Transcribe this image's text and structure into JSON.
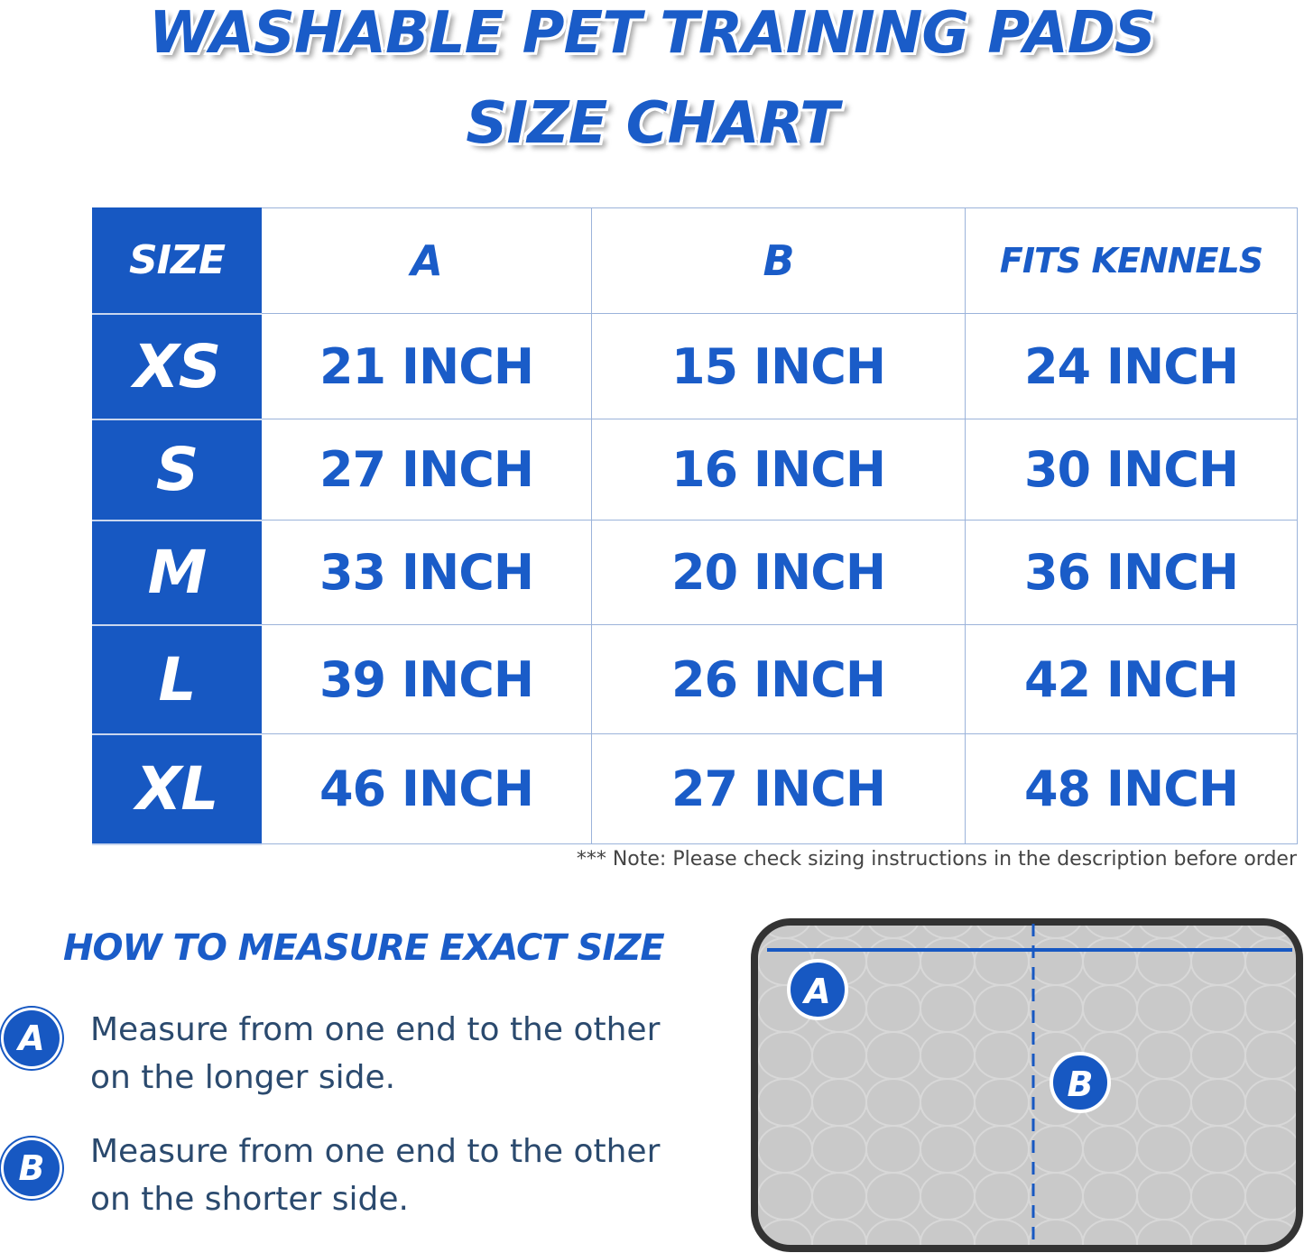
{
  "header": {
    "lines": [
      "WASHABLE PET TRAINING PADS",
      "SIZE CHART"
    ]
  },
  "table": {
    "columns": [
      "SIZE",
      "A",
      "B",
      "FITS KENNELS"
    ],
    "rows": [
      [
        "XS",
        "21 INCH",
        "15 INCH",
        "24 INCH"
      ],
      [
        "S",
        "27 INCH",
        "16 INCH",
        "30 INCH"
      ],
      [
        "M",
        "33 INCH",
        "20 INCH",
        "36 INCH"
      ],
      [
        "L",
        "39 INCH",
        "26 INCH",
        "42 INCH"
      ],
      [
        "XL",
        "46 INCH",
        "27 INCH",
        "48 INCH"
      ]
    ]
  },
  "note": "*** Note: Please check sizing instructions in the description before order",
  "measure": {
    "title": "HOW TO MEASURE EXACT SIZE",
    "steps": [
      {
        "badge": "A",
        "text": "Measure from one end to the other on the longer side."
      },
      {
        "badge": "B",
        "text": "Measure from one end to the other on the shorter side."
      }
    ]
  },
  "diagram": {
    "labels": [
      "A",
      "B"
    ]
  }
}
